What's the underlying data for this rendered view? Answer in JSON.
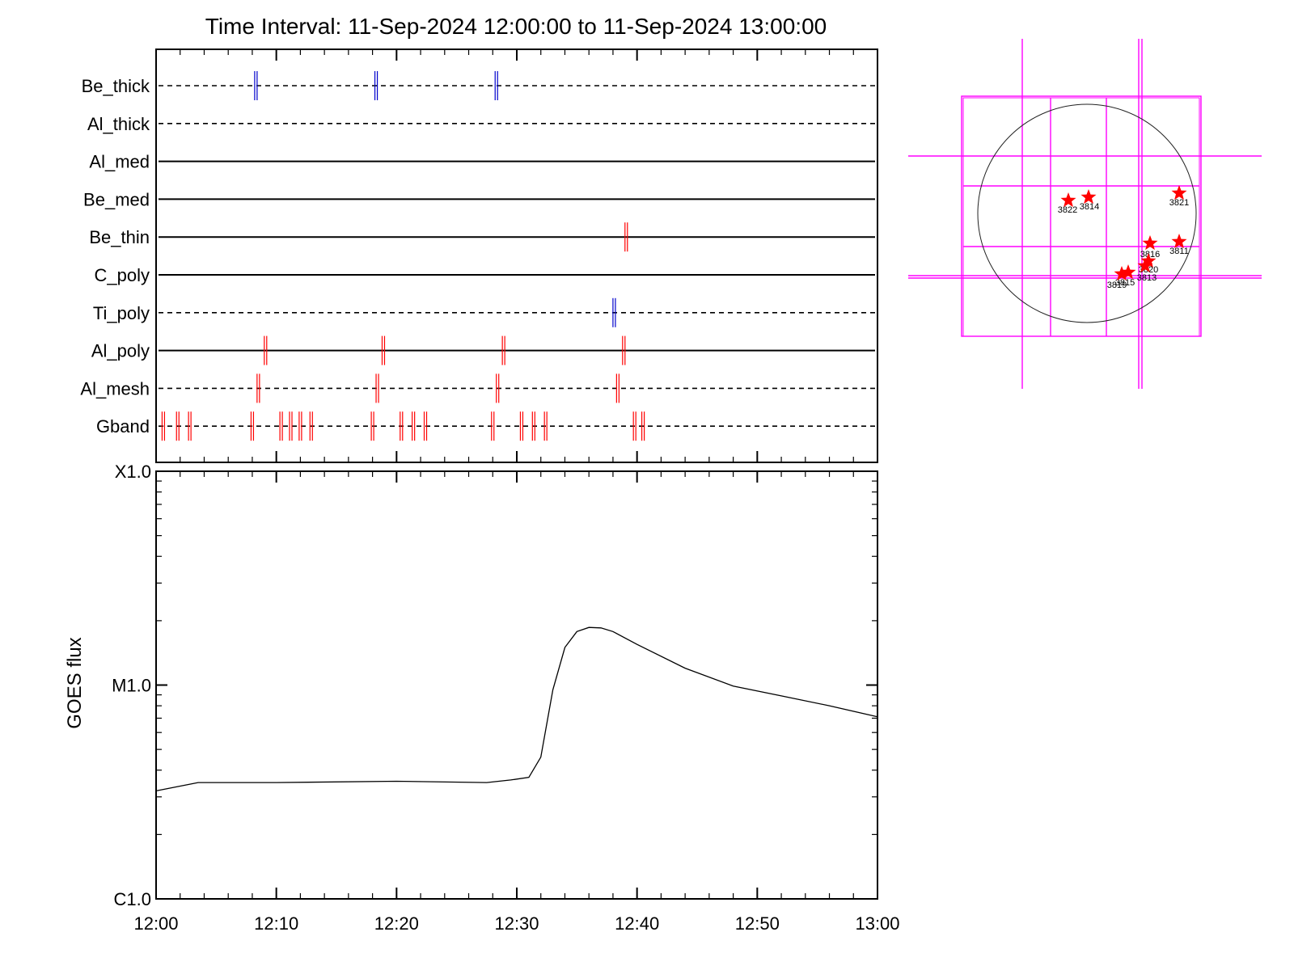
{
  "title": "Time Interval: 11-Sep-2024 12:00:00 to 11-Sep-2024 13:00:00",
  "chart_data": [
    {
      "type": "timeline",
      "x_range_minutes": [
        0,
        60
      ],
      "rows": [
        {
          "label": "Be_thick",
          "style": "dashed",
          "color": "#0000cc",
          "marks": [
            8.3,
            18.3,
            28.3
          ]
        },
        {
          "label": "Al_thick",
          "style": "dashed",
          "color": "#0000cc",
          "marks": []
        },
        {
          "label": "Al_med",
          "style": "solid",
          "color": "#000000",
          "marks": []
        },
        {
          "label": "Be_med",
          "style": "solid",
          "color": "#000000",
          "marks": []
        },
        {
          "label": "Be_thin",
          "style": "solid",
          "color": "#ff0000",
          "marks": [
            39.1
          ]
        },
        {
          "label": "C_poly",
          "style": "solid",
          "color": "#000000",
          "marks": []
        },
        {
          "label": "Ti_poly",
          "style": "dashed",
          "color": "#0000cc",
          "marks": [
            38.1
          ]
        },
        {
          "label": "Al_poly",
          "style": "solid",
          "color": "#ff0000",
          "marks": [
            9.1,
            18.9,
            28.9,
            38.9
          ]
        },
        {
          "label": "Al_mesh",
          "style": "dashed",
          "color": "#ff0000",
          "marks": [
            8.5,
            18.4,
            28.4,
            38.4
          ]
        },
        {
          "label": "Gband",
          "style": "dashed",
          "color": "#ff0000",
          "marks": [
            0.6,
            1.8,
            2.8,
            8.0,
            10.4,
            11.2,
            12.0,
            12.9,
            18.0,
            20.4,
            21.4,
            22.4,
            28.0,
            30.4,
            31.4,
            32.4,
            39.8,
            40.5
          ]
        }
      ]
    },
    {
      "type": "line",
      "ylabel": "GOES flux",
      "ylim": [
        1e-06,
        0.0001
      ],
      "yscale": "log",
      "y_tick_labels": [
        "C1.0",
        "M1.0",
        "X1.0"
      ],
      "y_tick_values": [
        1e-06,
        1e-05,
        0.0001
      ],
      "x_tick_labels": [
        "12:00",
        "12:10",
        "12:20",
        "12:30",
        "12:40",
        "12:50",
        "13:00"
      ],
      "x_tick_minutes": [
        0,
        10,
        20,
        30,
        40,
        50,
        60
      ],
      "series": [
        {
          "x_minutes": [
            0,
            3.5,
            10,
            20,
            27.5,
            29.5,
            31,
            32,
            33,
            34,
            35,
            36,
            37,
            38,
            40,
            44,
            48,
            52,
            56,
            60
          ],
          "values": [
            3.2e-06,
            3.5e-06,
            3.5e-06,
            3.55e-06,
            3.5e-06,
            3.6e-06,
            3.7e-06,
            4.6e-06,
            9.5e-06,
            1.5e-05,
            1.78e-05,
            1.86e-05,
            1.85e-05,
            1.78e-05,
            1.55e-05,
            1.2e-05,
            9.9e-06,
            8.9e-06,
            8e-06,
            7.1e-06
          ]
        }
      ]
    },
    {
      "type": "map",
      "markers": [
        {
          "label": "3822",
          "color": "#ff0000"
        },
        {
          "label": "3814",
          "color": "#ff0000"
        },
        {
          "label": "3821",
          "color": "#ff0000"
        },
        {
          "label": "3816",
          "color": "#ff0000"
        },
        {
          "label": "3811",
          "color": "#ff0000"
        },
        {
          "label": "3820",
          "color": "#ff0000"
        },
        {
          "label": "3813",
          "color": "#ff0000"
        },
        {
          "label": "3815",
          "color": "#ff0000"
        },
        {
          "label": "3819",
          "color": "#ff0000"
        }
      ],
      "grid_color": "#ff00ff"
    }
  ]
}
